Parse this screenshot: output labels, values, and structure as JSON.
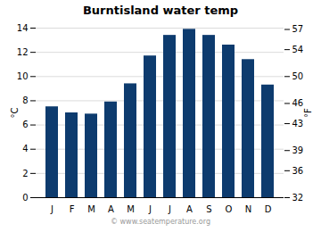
{
  "chart_data": {
    "type": "bar",
    "title": "Burntisland water temp",
    "annotations": [
      "© www.seatemperature.org"
    ],
    "categories": [
      "J",
      "F",
      "M",
      "A",
      "M",
      "J",
      "J",
      "A",
      "S",
      "O",
      "N",
      "D"
    ],
    "values": [
      7.5,
      7.0,
      6.9,
      7.9,
      9.4,
      11.7,
      13.4,
      13.9,
      13.4,
      12.6,
      11.4,
      9.3
    ],
    "color": "#0d3b6e",
    "ylabel": "°C",
    "ylim": [
      0,
      14
    ],
    "yticks": [
      0,
      2,
      4,
      6,
      8,
      10,
      12,
      14
    ],
    "y2label": "°F",
    "y2lim": [
      32,
      57.2
    ],
    "y2ticks": [
      32,
      36,
      39,
      43,
      46,
      50,
      54,
      57
    ],
    "grid": true
  }
}
